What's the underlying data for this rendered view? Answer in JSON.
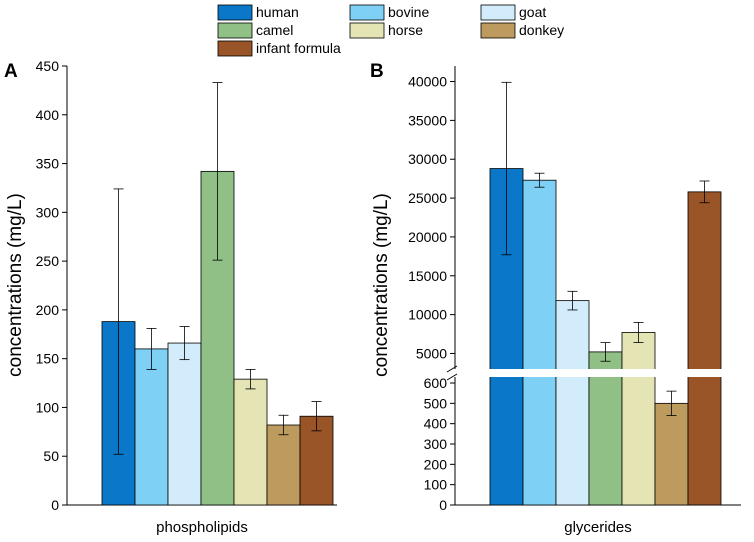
{
  "legend": {
    "items": [
      {
        "name": "human",
        "color": "#0b77c8"
      },
      {
        "name": "bovine",
        "color": "#7ed0f5"
      },
      {
        "name": "goat",
        "color": "#d2ecfb"
      },
      {
        "name": "camel",
        "color": "#90c085"
      },
      {
        "name": "horse",
        "color": "#e4e4b4"
      },
      {
        "name": "donkey",
        "color": "#bd9b5e"
      },
      {
        "name": "infant formula",
        "color": "#995427"
      }
    ]
  },
  "chart_data": [
    {
      "type": "bar",
      "panel_label": "A",
      "title": "",
      "xlabel": "phospholipids",
      "ylabel": "concentrations (mg/L)",
      "categories": [
        "human",
        "bovine",
        "goat",
        "camel",
        "horse",
        "donkey",
        "infant formula"
      ],
      "values": [
        188,
        160,
        166,
        342,
        129,
        82,
        91
      ],
      "errors": [
        136,
        21,
        17,
        91,
        10,
        10,
        15
      ],
      "ylim": [
        0,
        450
      ],
      "yticks": [
        0,
        50,
        100,
        150,
        200,
        250,
        300,
        350,
        400,
        450
      ],
      "ytick_labels": [
        "0",
        "50",
        "100",
        "150",
        "200",
        "250",
        "300",
        "350",
        "400",
        "450"
      ]
    },
    {
      "type": "bar",
      "panel_label": "B",
      "title": "",
      "xlabel": "glycerides",
      "ylabel": "concentrations (mg/L)",
      "categories": [
        "human",
        "bovine",
        "goat",
        "camel",
        "horse",
        "donkey",
        "infant formula"
      ],
      "values": [
        28800,
        27300,
        11800,
        5200,
        7700,
        500,
        25800
      ],
      "errors": [
        11100,
        900,
        1200,
        1200,
        1300,
        60,
        1400
      ],
      "axis_break": {
        "lower_range": [
          0,
          600
        ],
        "upper_range": [
          3000,
          42000
        ]
      },
      "ylim": [
        0,
        42000
      ],
      "yticks_lower": [
        0,
        100,
        200,
        300,
        400,
        500,
        600
      ],
      "ytick_labels_lower": [
        "0",
        "100",
        "200",
        "300",
        "400",
        "500",
        "600"
      ],
      "yticks_upper": [
        5000,
        10000,
        15000,
        20000,
        25000,
        30000,
        35000,
        40000
      ],
      "ytick_labels_upper": [
        "5000",
        "10000",
        "15000",
        "20000",
        "25000",
        "30000",
        "35000",
        "40000"
      ]
    }
  ]
}
